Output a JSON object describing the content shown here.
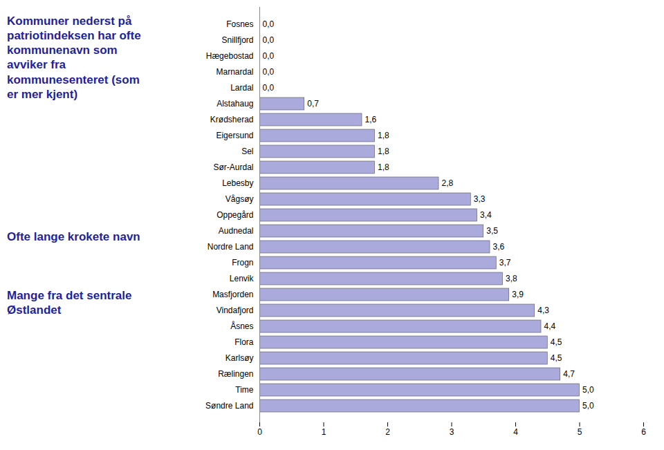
{
  "chart_data": {
    "type": "bar",
    "orientation": "horizontal",
    "categories": [
      "Søndre Land",
      "Time",
      "Rælingen",
      "Karlsøy",
      "Flora",
      "Åsnes",
      "Vindafjord",
      "Masfjorden",
      "Lenvik",
      "Frogn",
      "Nordre Land",
      "Audnedal",
      "Oppegård",
      "Vågsøy",
      "Lebesby",
      "Sør-Aurdal",
      "Sel",
      "Eigersund",
      "Krødsherad",
      "Alstahaug",
      "Lardal",
      "Marnardal",
      "Hægebostad",
      "Snillfjord",
      "Fosnes"
    ],
    "values": [
      5.0,
      5.0,
      4.7,
      4.5,
      4.5,
      4.4,
      4.3,
      3.9,
      3.8,
      3.7,
      3.6,
      3.5,
      3.4,
      3.3,
      2.8,
      1.8,
      1.8,
      1.8,
      1.6,
      0.7,
      0.0,
      0.0,
      0.0,
      0.0,
      0.0
    ],
    "value_labels": [
      "5,0",
      "5,0",
      "4,7",
      "4,5",
      "4,5",
      "4,4",
      "4,3",
      "3,9",
      "3,8",
      "3,7",
      "3,6",
      "3,5",
      "3,4",
      "3,3",
      "2,8",
      "1,8",
      "1,8",
      "1,8",
      "1,6",
      "0,7",
      "0,0",
      "0,0",
      "0,0",
      "0,0",
      "0,0"
    ],
    "data_labels": true,
    "color": "#aaaadd",
    "xlim": [
      0,
      6
    ],
    "xticks": [
      0,
      1,
      2,
      3,
      4,
      5,
      6
    ],
    "grid": false,
    "annotations": [
      {
        "text": "Kommuner nederst på\npatriotindeksen har ofte\nkommunenavn som\navviker fra\nkommunesenteret (som\ner mer kjent)",
        "color": "#1f1f9f"
      },
      {
        "text": "Ofte lange krokete navn",
        "color": "#1f1f9f"
      },
      {
        "text": "Mange fra det sentrale\nØstlandet",
        "color": "#1f1f9f"
      }
    ]
  }
}
